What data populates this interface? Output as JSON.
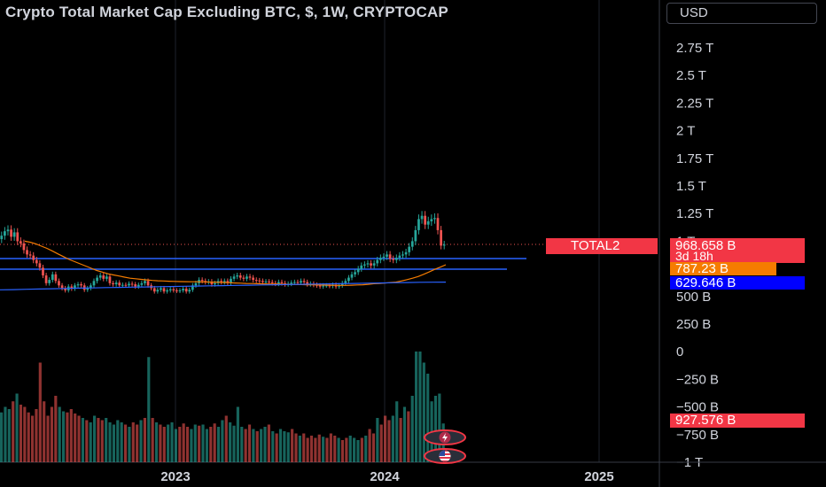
{
  "title": "Crypto Total Market Cap Excluding BTC, $, 1W, CRYPTOCAP",
  "currency_button": "USD",
  "colors": {
    "up": "#26a69a",
    "down": "#ef5350",
    "ma_line": "#f57c00",
    "ma_long_line": "#2962ff",
    "h_line": "#2962ff",
    "last_price_tag": "#f23645",
    "ma_tag": "#f57c00",
    "ma_long_tag": "#0000ff",
    "grid": "#1e222d"
  },
  "price_axis": {
    "ticks": [
      "2.75 T",
      "2.5 T",
      "2.25 T",
      "2 T",
      "1.75 T",
      "1.5 T",
      "1.25 T",
      "1 T",
      "750 B",
      "500 B",
      "250 B",
      "0",
      "−250 B",
      "−500 B",
      "−750 B",
      "−1 T"
    ]
  },
  "time_axis": {
    "labels": [
      "2023",
      "2024",
      "2025"
    ]
  },
  "price_tags": {
    "symbol": "TOTAL2",
    "last_price": "968.658 B",
    "countdown": "3d 18h",
    "ma_value": "787.23 B",
    "ma_long_value": "629.646 B",
    "volume_value": "927.576 B"
  },
  "icons": {
    "lightning": "lightning-icon",
    "flag": "us-flag-icon"
  },
  "chart_data": {
    "type": "candlestick",
    "series_name": "TOTAL2",
    "unit": "USD billions",
    "interval": "1W",
    "y_axis_range_billions": [
      -1000,
      2750
    ],
    "x_axis_labels": [
      "2023",
      "2024",
      "2025"
    ],
    "close_billions": [
      1050,
      1090,
      1105,
      1040,
      1080,
      1000,
      980,
      920,
      880,
      870,
      830,
      800,
      760,
      690,
      620,
      650,
      700,
      640,
      600,
      575,
      555,
      590,
      570,
      600,
      610,
      600,
      560,
      575,
      600,
      640,
      670,
      690,
      660,
      680,
      620,
      610,
      625,
      600,
      605,
      600,
      615,
      610,
      590,
      605,
      620,
      640,
      600,
      575,
      545,
      560,
      575,
      545,
      555,
      565,
      555,
      550,
      555,
      570,
      545,
      560,
      600,
      620,
      650,
      640,
      630,
      635,
      610,
      620,
      640,
      630,
      640,
      625,
      660,
      680,
      690,
      670,
      660,
      680,
      670,
      650,
      645,
      640,
      630,
      635,
      630,
      620,
      615,
      630,
      620,
      610,
      615,
      625,
      630,
      625,
      640,
      630,
      610,
      615,
      605,
      600,
      590,
      600,
      600,
      595,
      605,
      590,
      600,
      620,
      640,
      670,
      700,
      720,
      750,
      780,
      790,
      800,
      780,
      800,
      830,
      850,
      860,
      880,
      840,
      830,
      850,
      870,
      880,
      900,
      950,
      1000,
      1100,
      1200,
      1230,
      1150,
      1180,
      1200,
      1210,
      1100,
      960,
      969
    ],
    "ma_billions": [
      1000,
      990,
      975,
      955,
      935,
      910,
      885,
      860,
      835,
      815,
      795,
      775,
      755,
      735,
      720,
      705,
      695,
      685,
      675,
      665,
      660,
      655,
      650,
      645,
      642,
      640,
      638,
      636,
      635,
      634,
      633,
      633,
      632,
      631,
      630,
      628,
      626,
      624,
      622,
      620,
      618,
      617,
      615,
      614,
      613,
      612,
      611,
      610,
      609,
      608,
      607,
      606,
      605,
      604,
      603,
      602,
      601,
      600,
      600,
      602,
      604,
      606,
      610,
      615,
      618,
      622,
      626,
      630,
      640,
      652,
      665,
      680,
      700,
      722,
      745,
      765,
      787
    ],
    "ma_long_billions": [
      560,
      562,
      565,
      567,
      570,
      572,
      575,
      577,
      580,
      582,
      584,
      586,
      588,
      590,
      592,
      594,
      596,
      598,
      600,
      602,
      604,
      606,
      608,
      610,
      612,
      614,
      616,
      618,
      620,
      622,
      624,
      626,
      628,
      629,
      630
    ],
    "horizontal_levels_billions": [
      810,
      762
    ],
    "volume_relative": [
      0.45,
      0.5,
      0.48,
      0.55,
      0.62,
      0.52,
      0.5,
      0.45,
      0.42,
      0.48,
      0.9,
      0.55,
      0.42,
      0.5,
      0.6,
      0.5,
      0.46,
      0.45,
      0.48,
      0.44,
      0.42,
      0.4,
      0.38,
      0.36,
      0.42,
      0.4,
      0.38,
      0.4,
      0.36,
      0.34,
      0.38,
      0.36,
      0.34,
      0.32,
      0.36,
      0.34,
      0.38,
      0.4,
      0.95,
      0.4,
      0.36,
      0.34,
      0.32,
      0.34,
      0.36,
      0.3,
      0.32,
      0.35,
      0.32,
      0.3,
      0.34,
      0.33,
      0.34,
      0.3,
      0.32,
      0.35,
      0.32,
      0.38,
      0.42,
      0.36,
      0.33,
      0.5,
      0.32,
      0.3,
      0.34,
      0.3,
      0.28,
      0.3,
      0.32,
      0.34,
      0.28,
      0.26,
      0.3,
      0.28,
      0.27,
      0.3,
      0.26,
      0.24,
      0.26,
      0.22,
      0.24,
      0.22,
      0.25,
      0.23,
      0.22,
      0.26,
      0.24,
      0.22,
      0.2,
      0.22,
      0.24,
      0.22,
      0.2,
      0.22,
      0.24,
      0.3,
      0.26,
      0.4,
      0.34,
      0.42,
      0.38,
      0.42,
      0.55,
      0.4,
      0.5,
      0.46,
      0.6,
      1.0,
      1.0,
      0.9,
      0.8,
      0.55,
      0.6,
      0.62,
      0.35
    ],
    "volume_axis_value": "927.576 B"
  }
}
